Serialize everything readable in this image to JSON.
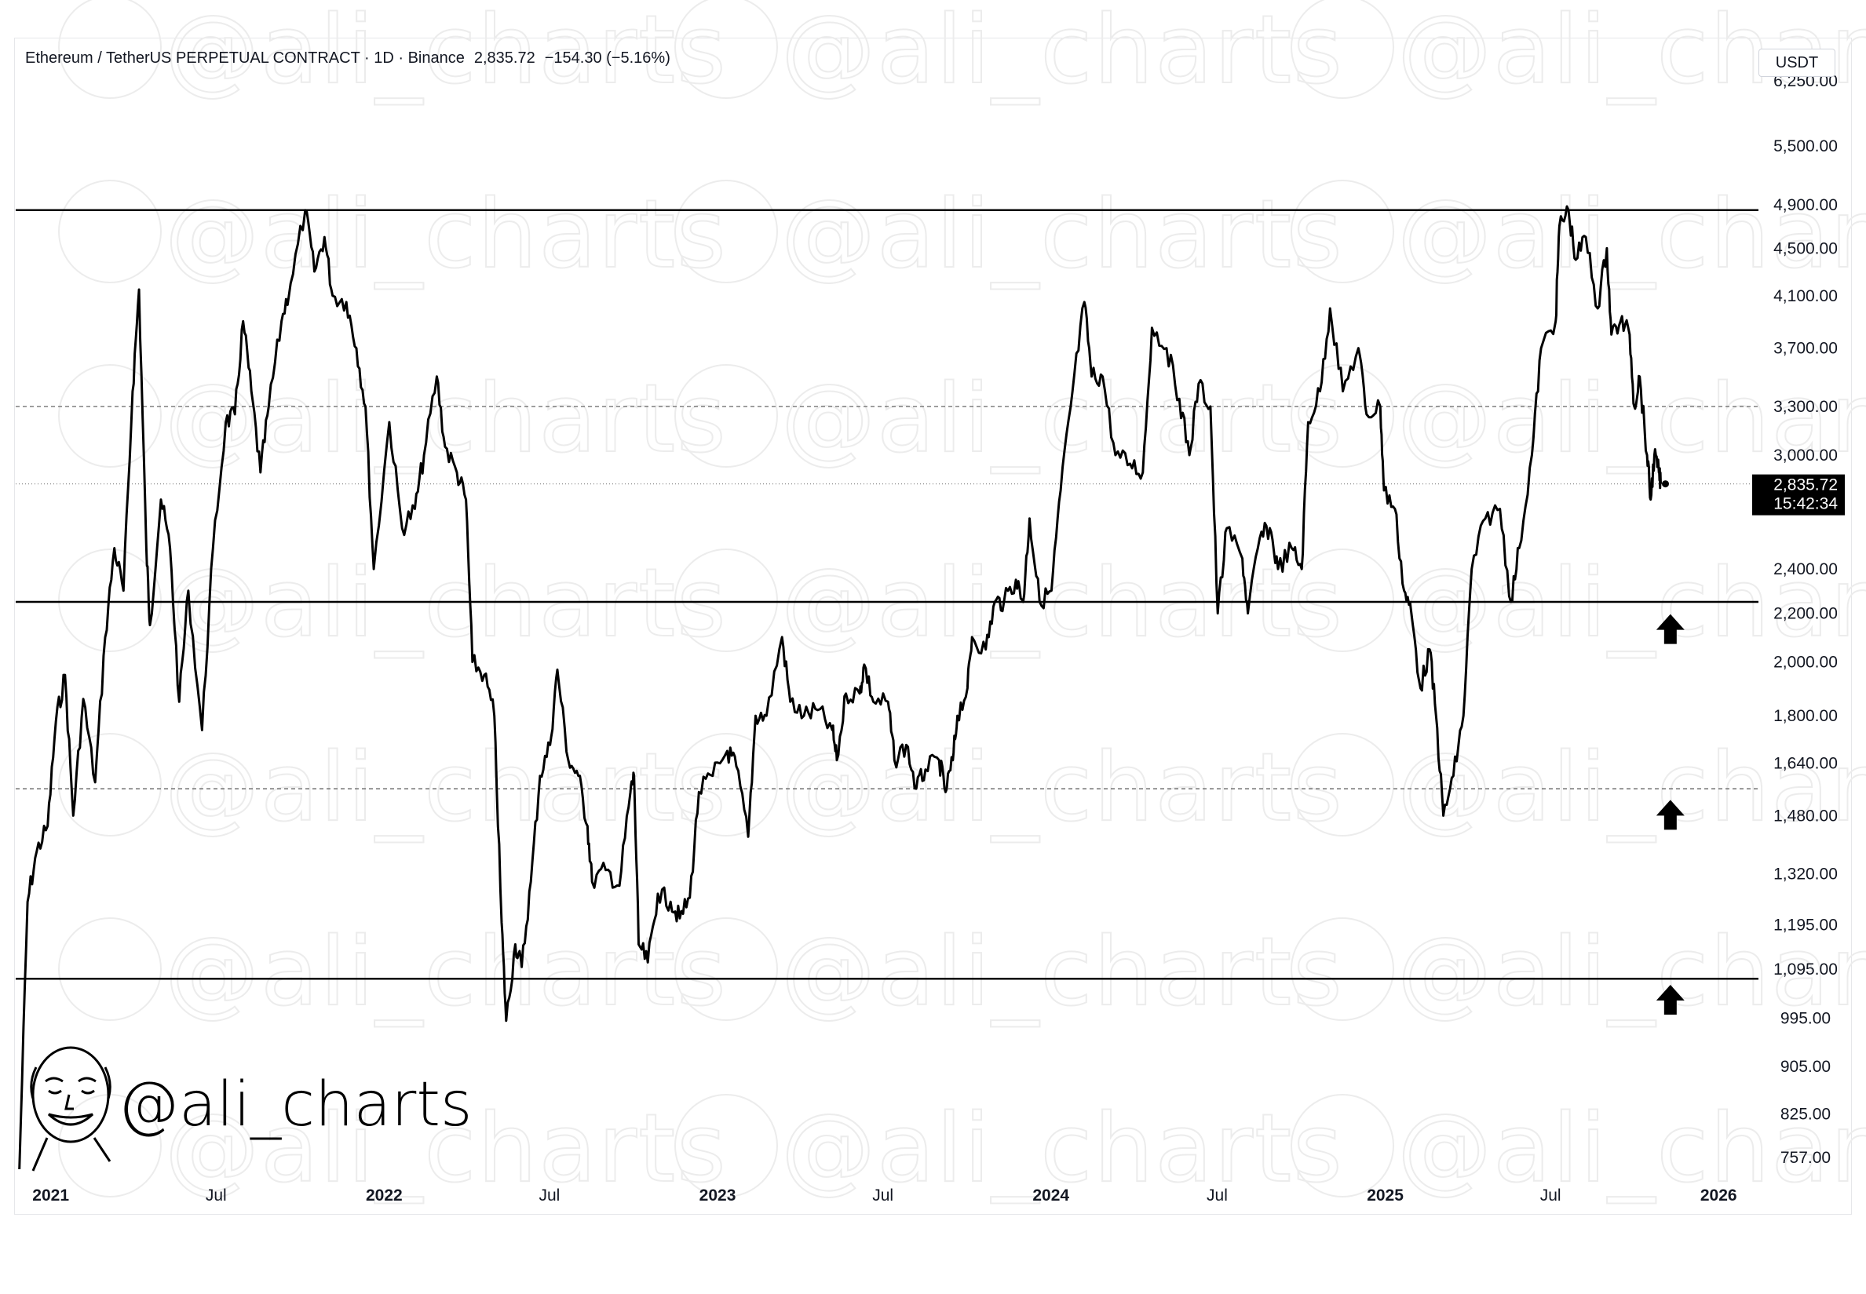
{
  "header": {
    "symbol": "Ethereum / TetherUS PERPETUAL CONTRACT",
    "interval": "1D",
    "exchange": "Binance",
    "last_price": "2,835.72",
    "change": "−154.30",
    "change_pct": "(−5.16%)"
  },
  "currency": "USDT",
  "price_badge": {
    "price": "2,835.72",
    "countdown": "15:42:34"
  },
  "brand": {
    "handle": "@ali_charts",
    "watermark_text": "@ali_charts"
  },
  "colors": {
    "line": "#000000",
    "badge_bg": "#000000",
    "badge_text": "#ffffff",
    "grid_dash": "#555555"
  },
  "chart_data": {
    "type": "line",
    "title": "Ethereum / TetherUS PERPETUAL CONTRACT · 1D · Binance",
    "series": [
      {
        "name": "ETHUSDT",
        "points": [
          [
            "2021-01-01",
            740
          ],
          [
            "2021-01-10",
            1250
          ],
          [
            "2021-01-20",
            1380
          ],
          [
            "2021-02-01",
            1450
          ],
          [
            "2021-02-10",
            1780
          ],
          [
            "2021-02-20",
            1950
          ],
          [
            "2021-03-01",
            1480
          ],
          [
            "2021-03-12",
            1860
          ],
          [
            "2021-03-25",
            1580
          ],
          [
            "2021-04-05",
            2100
          ],
          [
            "2021-04-15",
            2500
          ],
          [
            "2021-04-25",
            2300
          ],
          [
            "2021-05-05",
            3400
          ],
          [
            "2021-05-12",
            4150
          ],
          [
            "2021-05-20",
            2500
          ],
          [
            "2021-05-24",
            2150
          ],
          [
            "2021-06-05",
            2750
          ],
          [
            "2021-06-15",
            2500
          ],
          [
            "2021-06-25",
            1850
          ],
          [
            "2021-07-05",
            2300
          ],
          [
            "2021-07-20",
            1750
          ],
          [
            "2021-08-01",
            2500
          ],
          [
            "2021-08-15",
            3200
          ],
          [
            "2021-08-25",
            3250
          ],
          [
            "2021-09-03",
            3900
          ],
          [
            "2021-09-12",
            3400
          ],
          [
            "2021-09-22",
            2900
          ],
          [
            "2021-10-01",
            3300
          ],
          [
            "2021-10-15",
            3900
          ],
          [
            "2021-10-25",
            4200
          ],
          [
            "2021-11-10",
            4850
          ],
          [
            "2021-11-20",
            4300
          ],
          [
            "2021-12-01",
            4600
          ],
          [
            "2021-12-10",
            4100
          ],
          [
            "2021-12-25",
            4050
          ],
          [
            "2022-01-05",
            3700
          ],
          [
            "2022-01-15",
            3300
          ],
          [
            "2022-01-24",
            2400
          ],
          [
            "2022-02-10",
            3200
          ],
          [
            "2022-02-24",
            2600
          ],
          [
            "2022-03-10",
            2700
          ],
          [
            "2022-03-20",
            3000
          ],
          [
            "2022-04-03",
            3500
          ],
          [
            "2022-04-12",
            3050
          ],
          [
            "2022-04-25",
            2900
          ],
          [
            "2022-05-05",
            2750
          ],
          [
            "2022-05-12",
            2000
          ],
          [
            "2022-05-25",
            1950
          ],
          [
            "2022-06-05",
            1800
          ],
          [
            "2022-06-13",
            1200
          ],
          [
            "2022-06-18",
            990
          ],
          [
            "2022-06-28",
            1150
          ],
          [
            "2022-07-05",
            1100
          ],
          [
            "2022-07-15",
            1300
          ],
          [
            "2022-07-25",
            1600
          ],
          [
            "2022-08-05",
            1700
          ],
          [
            "2022-08-13",
            1970
          ],
          [
            "2022-08-25",
            1650
          ],
          [
            "2022-09-05",
            1600
          ],
          [
            "2022-09-15",
            1450
          ],
          [
            "2022-09-20",
            1300
          ],
          [
            "2022-10-05",
            1330
          ],
          [
            "2022-10-20",
            1290
          ],
          [
            "2022-11-01",
            1550
          ],
          [
            "2022-11-05",
            1600
          ],
          [
            "2022-11-10",
            1150
          ],
          [
            "2022-11-20",
            1110
          ],
          [
            "2022-12-01",
            1270
          ],
          [
            "2022-12-15",
            1250
          ],
          [
            "2022-12-25",
            1210
          ],
          [
            "2023-01-05",
            1260
          ],
          [
            "2023-01-15",
            1550
          ],
          [
            "2023-01-30",
            1600
          ],
          [
            "2023-02-15",
            1680
          ],
          [
            "2023-02-25",
            1630
          ],
          [
            "2023-03-10",
            1420
          ],
          [
            "2023-03-18",
            1800
          ],
          [
            "2023-03-30",
            1800
          ],
          [
            "2023-04-16",
            2100
          ],
          [
            "2023-04-25",
            1850
          ],
          [
            "2023-05-10",
            1800
          ],
          [
            "2023-05-25",
            1820
          ],
          [
            "2023-06-10",
            1750
          ],
          [
            "2023-06-15",
            1650
          ],
          [
            "2023-06-25",
            1880
          ],
          [
            "2023-07-10",
            1880
          ],
          [
            "2023-07-15",
            1990
          ],
          [
            "2023-07-25",
            1850
          ],
          [
            "2023-08-10",
            1850
          ],
          [
            "2023-08-17",
            1650
          ],
          [
            "2023-08-30",
            1700
          ],
          [
            "2023-09-10",
            1560
          ],
          [
            "2023-09-20",
            1620
          ],
          [
            "2023-10-05",
            1650
          ],
          [
            "2023-10-12",
            1550
          ],
          [
            "2023-10-20",
            1650
          ],
          [
            "2023-10-25",
            1800
          ],
          [
            "2023-11-05",
            1900
          ],
          [
            "2023-11-10",
            2100
          ],
          [
            "2023-11-25",
            2050
          ],
          [
            "2023-12-05",
            2250
          ],
          [
            "2023-12-15",
            2250
          ],
          [
            "2023-12-28",
            2350
          ],
          [
            "2024-01-05",
            2250
          ],
          [
            "2024-01-12",
            2650
          ],
          [
            "2024-01-23",
            2250
          ],
          [
            "2024-02-05",
            2300
          ],
          [
            "2024-02-15",
            2800
          ],
          [
            "2024-02-28",
            3400
          ],
          [
            "2024-03-12",
            4050
          ],
          [
            "2024-03-20",
            3500
          ],
          [
            "2024-04-01",
            3500
          ],
          [
            "2024-04-15",
            3000
          ],
          [
            "2024-05-01",
            2950
          ],
          [
            "2024-05-15",
            2900
          ],
          [
            "2024-05-25",
            3850
          ],
          [
            "2024-06-10",
            3700
          ],
          [
            "2024-06-24",
            3350
          ],
          [
            "2024-07-05",
            3000
          ],
          [
            "2024-07-15",
            3450
          ],
          [
            "2024-07-28",
            3300
          ],
          [
            "2024-08-05",
            2200
          ],
          [
            "2024-08-15",
            2600
          ],
          [
            "2024-09-01",
            2450
          ],
          [
            "2024-09-07",
            2200
          ],
          [
            "2024-09-20",
            2550
          ],
          [
            "2024-10-01",
            2600
          ],
          [
            "2024-10-10",
            2400
          ],
          [
            "2024-10-25",
            2500
          ],
          [
            "2024-11-05",
            2400
          ],
          [
            "2024-11-12",
            3200
          ],
          [
            "2024-11-25",
            3400
          ],
          [
            "2024-12-06",
            4000
          ],
          [
            "2024-12-20",
            3400
          ],
          [
            "2025-01-06",
            3700
          ],
          [
            "2025-01-15",
            3250
          ],
          [
            "2025-01-30",
            3300
          ],
          [
            "2025-02-03",
            2800
          ],
          [
            "2025-02-15",
            2700
          ],
          [
            "2025-02-25",
            2300
          ],
          [
            "2025-03-05",
            2200
          ],
          [
            "2025-03-15",
            1900
          ],
          [
            "2025-03-25",
            2050
          ],
          [
            "2025-04-01",
            1800
          ],
          [
            "2025-04-09",
            1480
          ],
          [
            "2025-04-20",
            1600
          ],
          [
            "2025-05-01",
            1800
          ],
          [
            "2025-05-10",
            2400
          ],
          [
            "2025-05-25",
            2650
          ],
          [
            "2025-06-10",
            2700
          ],
          [
            "2025-06-22",
            2250
          ],
          [
            "2025-07-01",
            2500
          ],
          [
            "2025-07-15",
            3000
          ],
          [
            "2025-07-25",
            3700
          ],
          [
            "2025-08-10",
            3900
          ],
          [
            "2025-08-14",
            4700
          ],
          [
            "2025-08-24",
            4850
          ],
          [
            "2025-09-01",
            4400
          ],
          [
            "2025-09-12",
            4600
          ],
          [
            "2025-09-25",
            4000
          ],
          [
            "2025-10-05",
            4500
          ],
          [
            "2025-10-10",
            3800
          ],
          [
            "2025-10-20",
            3900
          ],
          [
            "2025-10-30",
            3800
          ],
          [
            "2025-11-04",
            3300
          ],
          [
            "2025-11-10",
            3500
          ],
          [
            "2025-11-18",
            3000
          ],
          [
            "2025-11-22",
            2750
          ],
          [
            "2025-11-26",
            3000
          ],
          [
            "2025-12-01",
            2900
          ],
          [
            "2025-12-03",
            2835.72
          ]
        ]
      }
    ],
    "horizontal_levels": [
      {
        "price": 4850,
        "style": "solid"
      },
      {
        "price": 3300,
        "style": "dashed"
      },
      {
        "price": 2835.72,
        "style": "dotted"
      },
      {
        "price": 2250,
        "style": "solid"
      },
      {
        "price": 1560,
        "style": "dashed"
      },
      {
        "price": 1075,
        "style": "solid"
      }
    ],
    "arrows": [
      {
        "direction": "up",
        "date": "2025-12-05",
        "price": 2130
      },
      {
        "direction": "up",
        "date": "2025-12-05",
        "price": 1480
      },
      {
        "direction": "up",
        "date": "2025-12-05",
        "price": 1030
      }
    ],
    "y_scale": "log",
    "ylim": [
      740,
      6800
    ],
    "xlim": [
      "2020-12-28",
      "2026-03-20"
    ],
    "yticks": [
      {
        "value": 6250,
        "label": "6,250.00"
      },
      {
        "value": 5500,
        "label": "5,500.00"
      },
      {
        "value": 4900,
        "label": "4,900.00"
      },
      {
        "value": 4500,
        "label": "4,500.00"
      },
      {
        "value": 4100,
        "label": "4,100.00"
      },
      {
        "value": 3700,
        "label": "3,700.00"
      },
      {
        "value": 3300,
        "label": "3,300.00"
      },
      {
        "value": 3000,
        "label": "3,000.00"
      },
      {
        "value": 2400,
        "label": "2,400.00"
      },
      {
        "value": 2200,
        "label": "2,200.00"
      },
      {
        "value": 2000,
        "label": "2,000.00"
      },
      {
        "value": 1800,
        "label": "1,800.00"
      },
      {
        "value": 1640,
        "label": "1,640.00"
      },
      {
        "value": 1480,
        "label": "1,480.00"
      },
      {
        "value": 1320,
        "label": "1,320.00"
      },
      {
        "value": 1195,
        "label": "1,195.00"
      },
      {
        "value": 1095,
        "label": "1,095.00"
      },
      {
        "value": 995,
        "label": "995.00"
      },
      {
        "value": 905,
        "label": "905.00"
      },
      {
        "value": 825,
        "label": "825.00"
      },
      {
        "value": 757,
        "label": "757.00"
      }
    ],
    "xticks": [
      {
        "date": "2021-01-01",
        "label": "2021",
        "bold": true
      },
      {
        "date": "2021-07-01",
        "label": "Jul",
        "bold": false
      },
      {
        "date": "2022-01-01",
        "label": "2022",
        "bold": true
      },
      {
        "date": "2022-07-01",
        "label": "Jul",
        "bold": false
      },
      {
        "date": "2023-01-01",
        "label": "2023",
        "bold": true
      },
      {
        "date": "2023-07-01",
        "label": "Jul",
        "bold": false
      },
      {
        "date": "2024-01-01",
        "label": "2024",
        "bold": true
      },
      {
        "date": "2024-07-01",
        "label": "Jul",
        "bold": false
      },
      {
        "date": "2025-01-01",
        "label": "2025",
        "bold": true
      },
      {
        "date": "2025-07-01",
        "label": "Jul",
        "bold": false
      },
      {
        "date": "2026-01-01",
        "label": "2026",
        "bold": true
      }
    ],
    "grid": false,
    "legend": "none"
  }
}
